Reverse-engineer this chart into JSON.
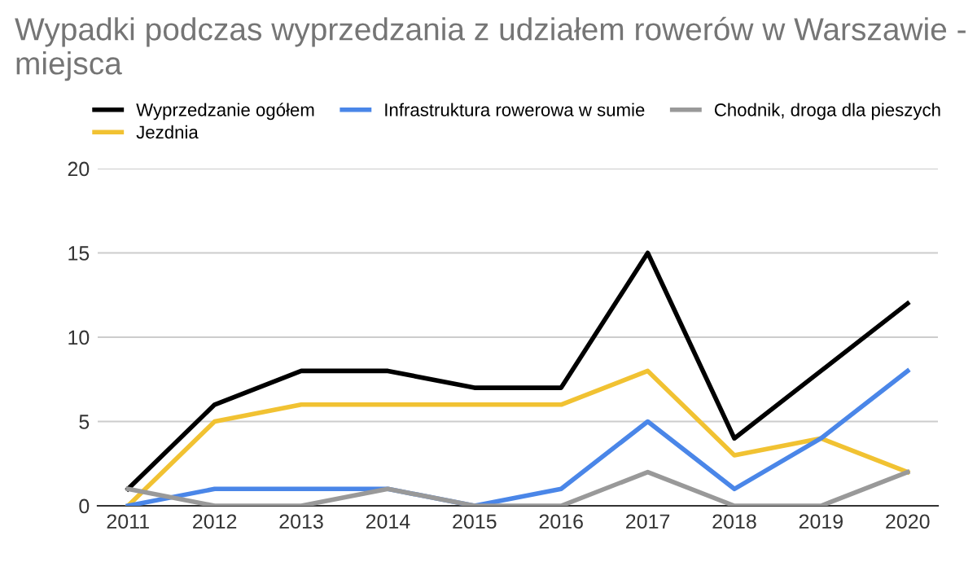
{
  "chart_data": {
    "type": "line",
    "title": "Wypadki podczas wyprzedzania z udziałem rowerów w Warszawie - miejsca",
    "categories": [
      "2011",
      "2012",
      "2013",
      "2014",
      "2015",
      "2016",
      "2017",
      "2018",
      "2019",
      "2020"
    ],
    "series": [
      {
        "name": "Wyprzedzanie ogółem",
        "color": "#000000",
        "values": [
          1,
          6,
          8,
          8,
          7,
          7,
          15,
          4,
          8,
          12
        ]
      },
      {
        "name": "Jezdnia",
        "color": "#f1c232",
        "values": [
          0,
          5,
          6,
          6,
          6,
          6,
          8,
          3,
          4,
          2
        ]
      },
      {
        "name": "Infrastruktura rowerowa w sumie",
        "color": "#4a86e8",
        "values": [
          0,
          1,
          1,
          1,
          0,
          1,
          5,
          1,
          4,
          8
        ]
      },
      {
        "name": "Chodnik, droga dla pieszych",
        "color": "#999999",
        "values": [
          1,
          0,
          0,
          1,
          0,
          0,
          2,
          0,
          0,
          2
        ]
      }
    ],
    "ylim": [
      0,
      20
    ],
    "yticks": [
      0,
      5,
      10,
      15,
      20
    ],
    "grid": "y",
    "legend": "top",
    "marker": "none",
    "line_style": "solid"
  }
}
